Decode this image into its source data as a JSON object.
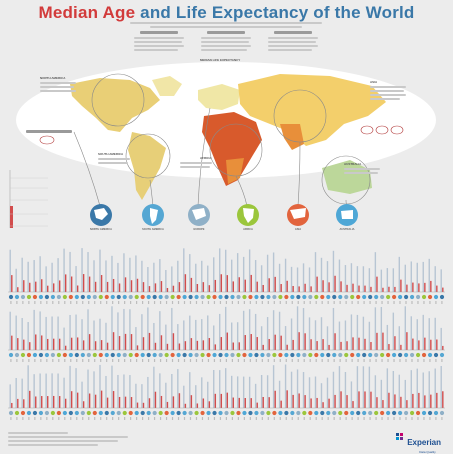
{
  "title": {
    "part1": "Median Age",
    "part2": "and Life Expectancy of the World"
  },
  "legend": {
    "title": "MEDIAN LIFE EXPECTANCY",
    "colors": [
      "#b8312f",
      "#d9572b",
      "#e88f3a",
      "#f0b64a",
      "#f3cf6b",
      "#efe08e",
      "#dfe6a0",
      "#c8dd9a",
      "#a8cf8a"
    ]
  },
  "continents": [
    "NORTH AMERICA",
    "SOUTH AMERICA",
    "EUROPE",
    "AFRICA",
    "ASIA",
    "AUSTRALIA"
  ],
  "region_colors": [
    "#3a78a8",
    "#55a7d3",
    "#8fb0c7",
    "#9bc63c",
    "#e2643d",
    "#4ea7d6"
  ],
  "chart_key": {
    "labels": [
      "",
      "",
      "",
      "",
      ""
    ]
  },
  "brand": {
    "name": "Experian",
    "sub": "Data Quality"
  }
}
